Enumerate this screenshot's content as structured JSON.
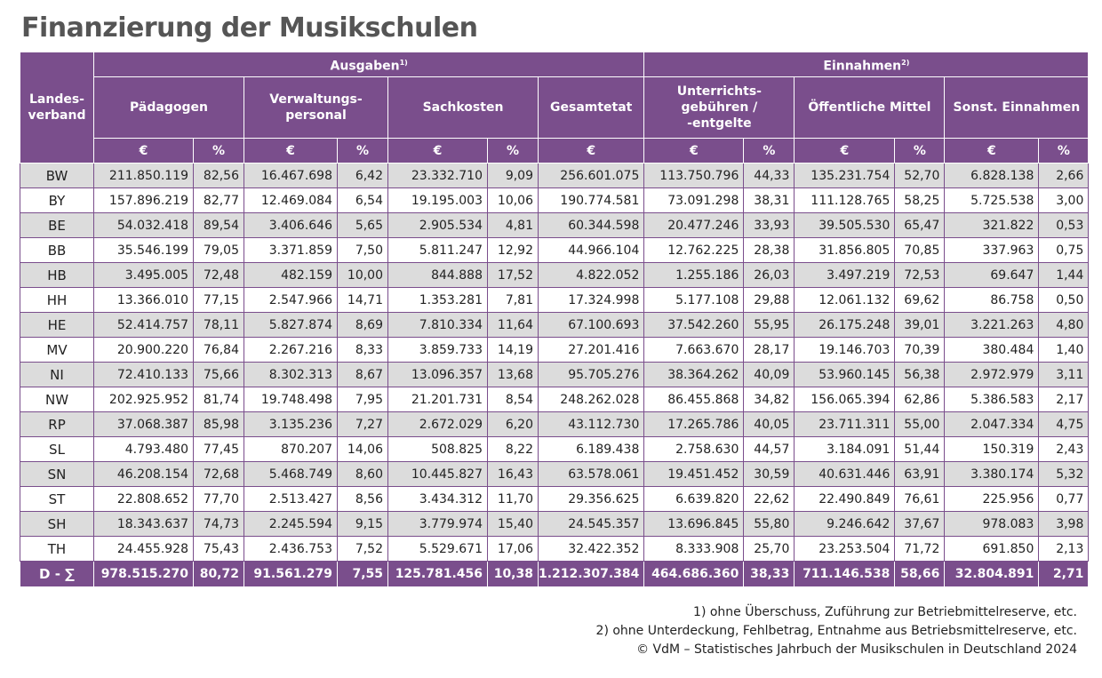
{
  "title": "Finanzierung der Musikschulen",
  "header": {
    "landesverband": "Landes-\nverband",
    "ausgaben": "Ausgaben",
    "ausgaben_sup": "1)",
    "einnahmen": "Einnahmen",
    "einnahmen_sup": "2)",
    "paedagogen": "Pädagogen",
    "verwaltung": "Verwaltungs-\npersonal",
    "sachkosten": "Sachkosten",
    "gesamtetat": "Gesamtetat",
    "unterricht": "Unterrichts-\ngebühren /\n-entgelte",
    "oeffentlich": "Öffentliche Mittel",
    "sonstige": "Sonst. Einnahmen",
    "euro": "€",
    "pct": "%"
  },
  "rows": [
    [
      "BW",
      "211.850.119",
      "82,56",
      "16.467.698",
      "6,42",
      "23.332.710",
      "9,09",
      "256.601.075",
      "113.750.796",
      "44,33",
      "135.231.754",
      "52,70",
      "6.828.138",
      "2,66"
    ],
    [
      "BY",
      "157.896.219",
      "82,77",
      "12.469.084",
      "6,54",
      "19.195.003",
      "10,06",
      "190.774.581",
      "73.091.298",
      "38,31",
      "111.128.765",
      "58,25",
      "5.725.538",
      "3,00"
    ],
    [
      "BE",
      "54.032.418",
      "89,54",
      "3.406.646",
      "5,65",
      "2.905.534",
      "4,81",
      "60.344.598",
      "20.477.246",
      "33,93",
      "39.505.530",
      "65,47",
      "321.822",
      "0,53"
    ],
    [
      "BB",
      "35.546.199",
      "79,05",
      "3.371.859",
      "7,50",
      "5.811.247",
      "12,92",
      "44.966.104",
      "12.762.225",
      "28,38",
      "31.856.805",
      "70,85",
      "337.963",
      "0,75"
    ],
    [
      "HB",
      "3.495.005",
      "72,48",
      "482.159",
      "10,00",
      "844.888",
      "17,52",
      "4.822.052",
      "1.255.186",
      "26,03",
      "3.497.219",
      "72,53",
      "69.647",
      "1,44"
    ],
    [
      "HH",
      "13.366.010",
      "77,15",
      "2.547.966",
      "14,71",
      "1.353.281",
      "7,81",
      "17.324.998",
      "5.177.108",
      "29,88",
      "12.061.132",
      "69,62",
      "86.758",
      "0,50"
    ],
    [
      "HE",
      "52.414.757",
      "78,11",
      "5.827.874",
      "8,69",
      "7.810.334",
      "11,64",
      "67.100.693",
      "37.542.260",
      "55,95",
      "26.175.248",
      "39,01",
      "3.221.263",
      "4,80"
    ],
    [
      "MV",
      "20.900.220",
      "76,84",
      "2.267.216",
      "8,33",
      "3.859.733",
      "14,19",
      "27.201.416",
      "7.663.670",
      "28,17",
      "19.146.703",
      "70,39",
      "380.484",
      "1,40"
    ],
    [
      "NI",
      "72.410.133",
      "75,66",
      "8.302.313",
      "8,67",
      "13.096.357",
      "13,68",
      "95.705.276",
      "38.364.262",
      "40,09",
      "53.960.145",
      "56,38",
      "2.972.979",
      "3,11"
    ],
    [
      "NW",
      "202.925.952",
      "81,74",
      "19.748.498",
      "7,95",
      "21.201.731",
      "8,54",
      "248.262.028",
      "86.455.868",
      "34,82",
      "156.065.394",
      "62,86",
      "5.386.583",
      "2,17"
    ],
    [
      "RP",
      "37.068.387",
      "85,98",
      "3.135.236",
      "7,27",
      "2.672.029",
      "6,20",
      "43.112.730",
      "17.265.786",
      "40,05",
      "23.711.311",
      "55,00",
      "2.047.334",
      "4,75"
    ],
    [
      "SL",
      "4.793.480",
      "77,45",
      "870.207",
      "14,06",
      "508.825",
      "8,22",
      "6.189.438",
      "2.758.630",
      "44,57",
      "3.184.091",
      "51,44",
      "150.319",
      "2,43"
    ],
    [
      "SN",
      "46.208.154",
      "72,68",
      "5.468.749",
      "8,60",
      "10.445.827",
      "16,43",
      "63.578.061",
      "19.451.452",
      "30,59",
      "40.631.446",
      "63,91",
      "3.380.174",
      "5,32"
    ],
    [
      "ST",
      "22.808.652",
      "77,70",
      "2.513.427",
      "8,56",
      "3.434.312",
      "11,70",
      "29.356.625",
      "6.639.820",
      "22,62",
      "22.490.849",
      "76,61",
      "225.956",
      "0,77"
    ],
    [
      "SH",
      "18.343.637",
      "74,73",
      "2.245.594",
      "9,15",
      "3.779.974",
      "15,40",
      "24.545.357",
      "13.696.845",
      "55,80",
      "9.246.642",
      "37,67",
      "978.083",
      "3,98"
    ],
    [
      "TH",
      "24.455.928",
      "75,43",
      "2.436.753",
      "7,52",
      "5.529.671",
      "17,06",
      "32.422.352",
      "8.333.908",
      "25,70",
      "23.253.504",
      "71,72",
      "691.850",
      "2,13"
    ]
  ],
  "total": [
    "D - ∑",
    "978.515.270",
    "80,72",
    "91.561.279",
    "7,55",
    "125.781.456",
    "10,38",
    "1.212.307.384",
    "464.686.360",
    "38,33",
    "711.146.538",
    "58,66",
    "32.804.891",
    "2,71"
  ],
  "notes": [
    "1) ohne Überschuss, Zuführung zur Betriebmittelreserve, etc.",
    "2) ohne Unterdeckung, Fehlbetrag, Entnahme aus Betriebsmittelreserve, etc.",
    "© VdM – Statistisches Jahrbuch der Musikschulen in Deutschland 2024"
  ]
}
